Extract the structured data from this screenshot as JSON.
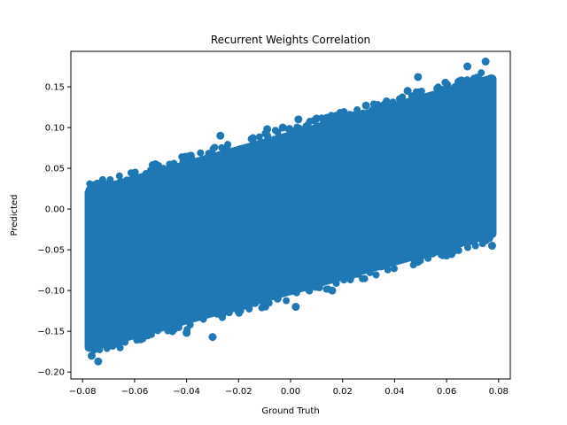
{
  "chart_data": {
    "type": "scatter",
    "title": "Recurrent Weights Correlation",
    "xlabel": "Ground Truth",
    "ylabel": "Predicted",
    "xlim": [
      -0.0845,
      0.0845
    ],
    "ylim": [
      -0.2085,
      0.1935
    ],
    "xticks": [
      -0.08,
      -0.06,
      -0.04,
      -0.02,
      0.0,
      0.02,
      0.04,
      0.06,
      0.08
    ],
    "xtick_labels": [
      "−0.08",
      "−0.06",
      "−0.04",
      "−0.02",
      "0.00",
      "0.02",
      "0.04",
      "0.06",
      "0.08"
    ],
    "yticks": [
      -0.2,
      -0.15,
      -0.1,
      -0.05,
      0.0,
      0.05,
      0.1,
      0.15
    ],
    "ytick_labels": [
      "−0.20",
      "−0.15",
      "−0.10",
      "−0.05",
      "0.00",
      "0.05",
      "0.10",
      "0.15"
    ],
    "grid": false,
    "marker_color": "#1f77b4",
    "trend": {
      "slope": 0.9,
      "intercept": -0.005,
      "band_halfwidth": 0.095,
      "x_range": [
        -0.0775,
        0.0775
      ]
    },
    "outliers": {
      "x": [
        -0.0765,
        -0.074,
        -0.07,
        -0.066,
        -0.06,
        -0.055,
        -0.05,
        -0.04,
        -0.034,
        -0.03,
        -0.026,
        -0.024,
        -0.015,
        -0.013,
        -0.005,
        0.002,
        0.006,
        0.011,
        0.016,
        0.02,
        0.026,
        0.03,
        0.034,
        0.037,
        0.042,
        0.046,
        0.05,
        0.052,
        0.058,
        0.06,
        0.064,
        0.066,
        0.07,
        0.072,
        0.0735,
        0.0775,
        -0.071,
        -0.068,
        -0.063,
        -0.058,
        -0.052,
        -0.045,
        -0.038,
        -0.032,
        -0.027,
        -0.022,
        -0.018,
        -0.009,
        -0.003,
        0.003,
        0.01,
        0.014,
        0.019,
        0.024,
        0.029,
        0.038,
        0.045,
        0.049,
        0.056,
        0.061,
        0.065,
        0.068,
        0.071,
        0.075,
        -0.077,
        -0.073,
        -0.062,
        -0.044,
        -0.028,
        -0.012,
        0.004,
        0.018,
        0.033,
        0.048,
        0.062,
        0.076
      ],
      "y": [
        -0.18,
        -0.187,
        -0.16,
        -0.166,
        -0.143,
        -0.155,
        -0.03,
        -0.152,
        -0.09,
        -0.157,
        -0.128,
        -0.112,
        -0.108,
        -0.102,
        -0.11,
        -0.12,
        -0.083,
        -0.096,
        -0.1,
        -0.075,
        -0.07,
        -0.052,
        -0.06,
        -0.05,
        -0.041,
        -0.035,
        -0.028,
        -0.045,
        -0.04,
        -0.057,
        -0.037,
        -0.034,
        -0.022,
        -0.018,
        -0.02,
        -0.045,
        0.015,
        0.025,
        0.035,
        0.035,
        0.055,
        0.045,
        0.058,
        0.063,
        0.09,
        0.07,
        0.068,
        0.098,
        0.1,
        0.11,
        0.111,
        0.112,
        0.113,
        0.115,
        0.127,
        0.125,
        0.145,
        0.162,
        0.141,
        0.145,
        0.157,
        0.175,
        0.145,
        0.181,
        0.002,
        0.01,
        -0.115,
        -0.101,
        -0.082,
        -0.07,
        -0.06,
        -0.04,
        -0.026,
        -0.012,
        0.002,
        0.022
      ]
    }
  }
}
